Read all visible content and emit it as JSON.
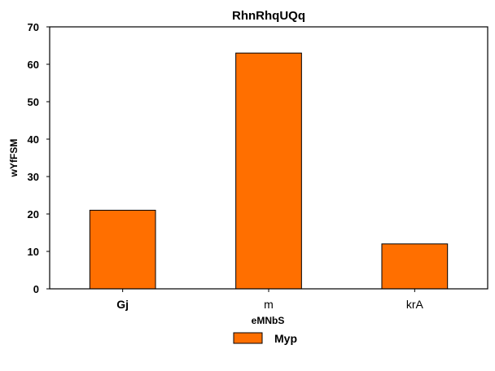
{
  "chart_data": {
    "type": "bar",
    "title": "RhnRhqUQq",
    "xlabel": "eMNbS",
    "ylabel": "wYfFSM",
    "categories": [
      "Gj",
      "m",
      "krA"
    ],
    "category_label_bold": [
      true,
      false,
      false
    ],
    "series": [
      {
        "name": "Myp",
        "values": [
          21,
          63,
          12
        ],
        "color": "#ff6f00"
      }
    ],
    "ylim": [
      0,
      70
    ],
    "yticks": [
      0,
      10,
      20,
      30,
      40,
      50,
      60,
      70
    ],
    "grid": false,
    "legend_position": "bottom-center"
  }
}
